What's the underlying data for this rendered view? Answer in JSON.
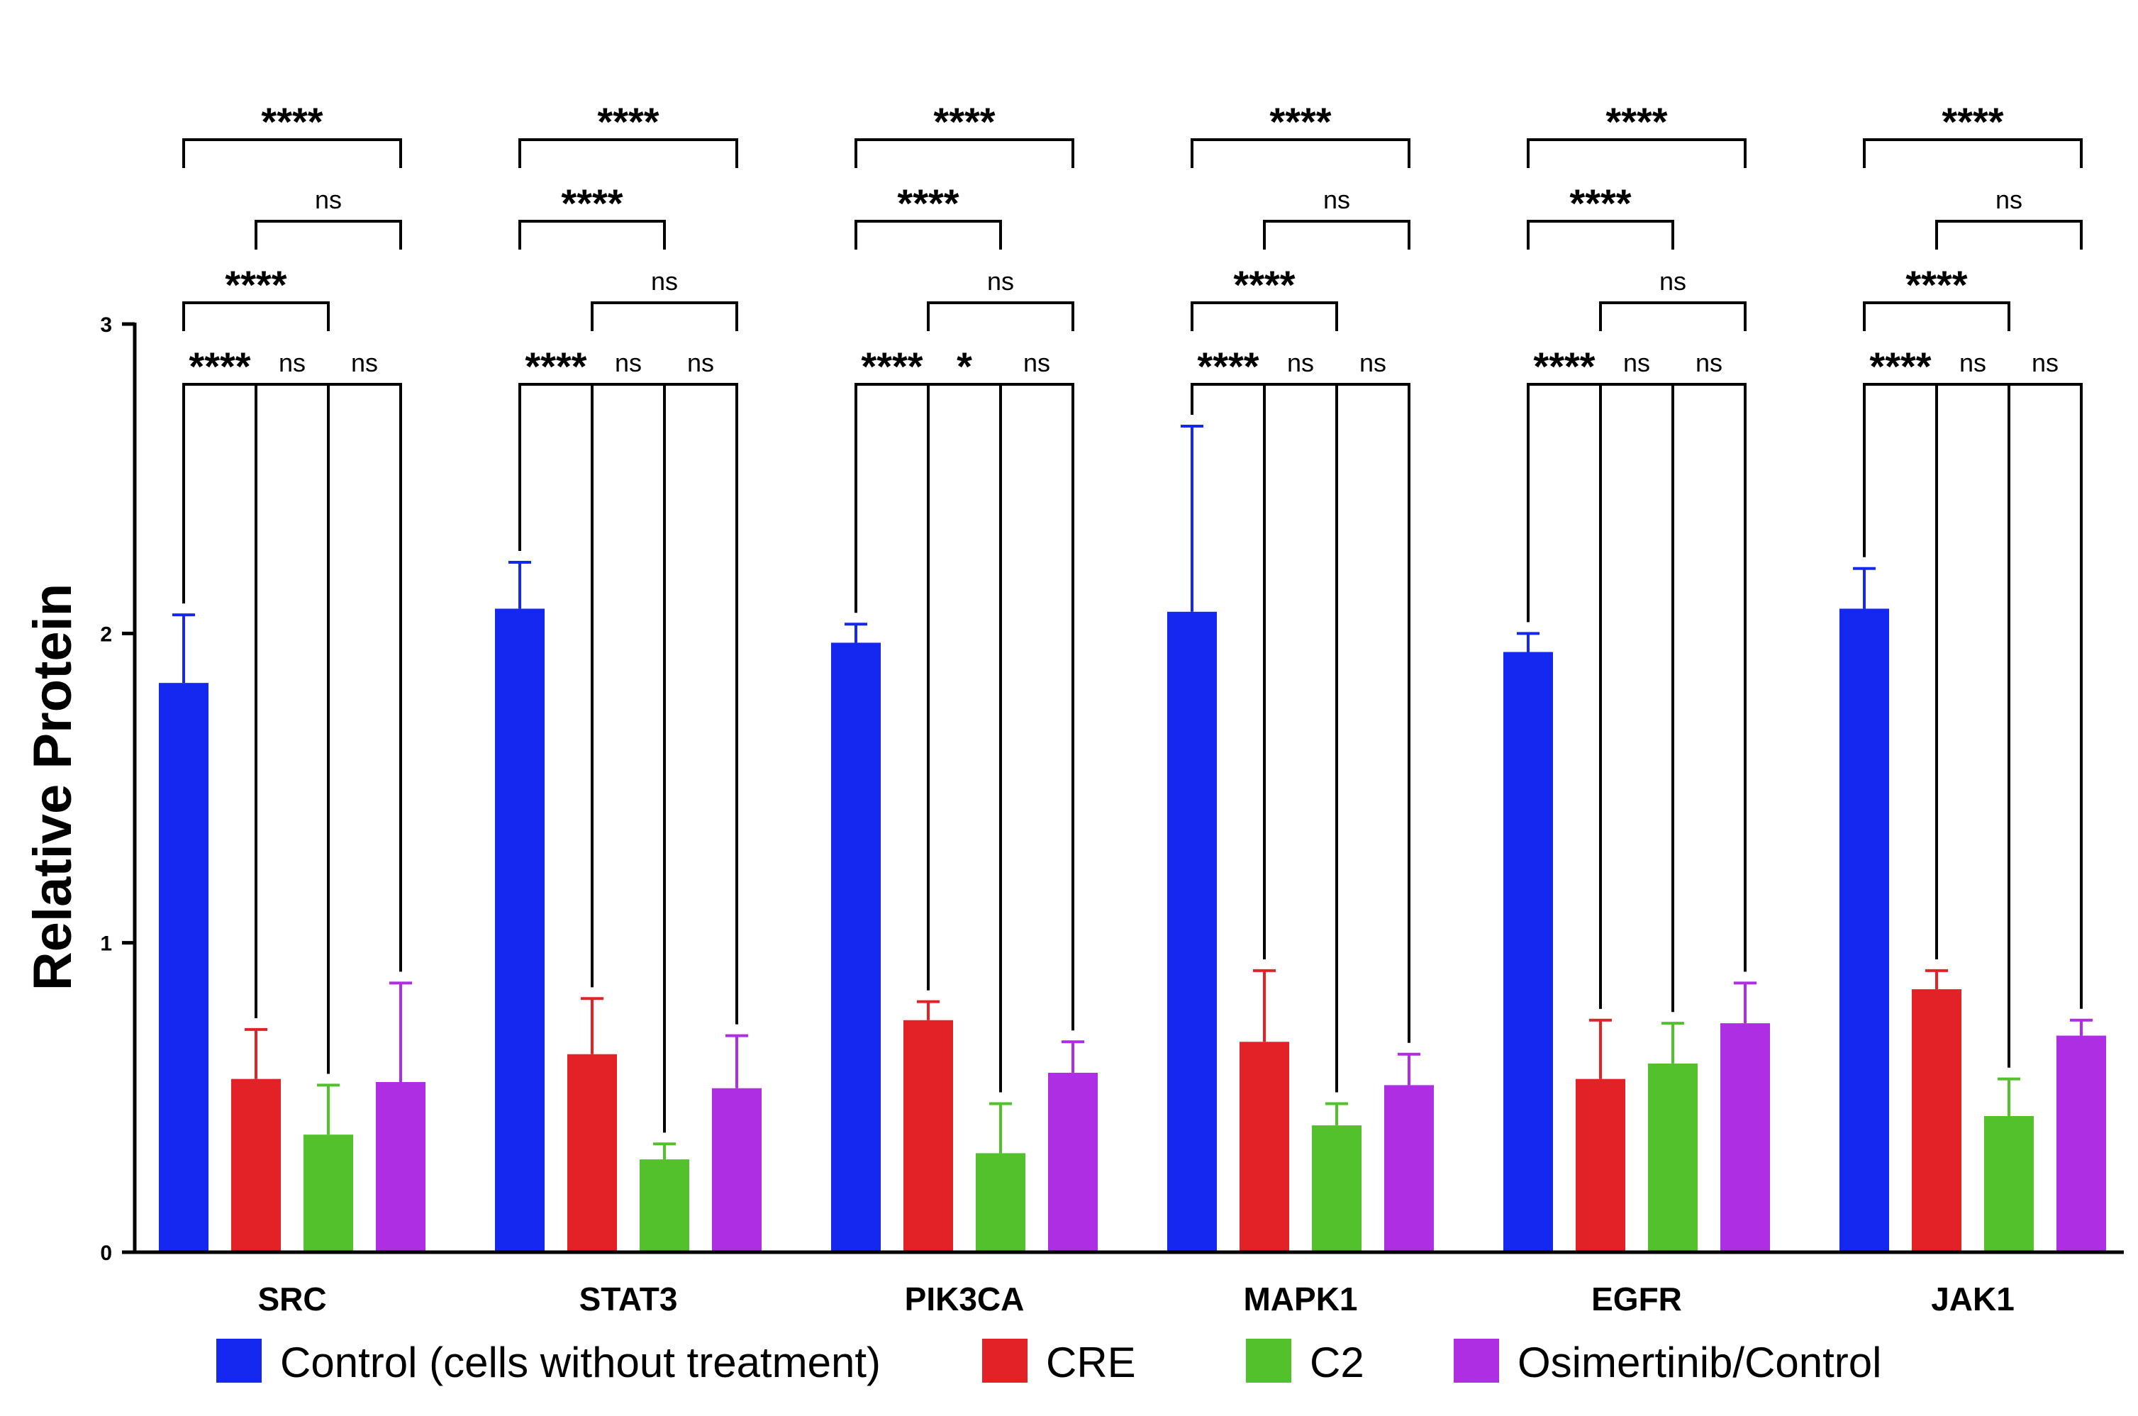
{
  "chart_data": {
    "type": "bar",
    "title": "",
    "xlabel": "",
    "ylabel": "Relative Protein",
    "ylim": [
      0,
      3
    ],
    "yticks": [
      0,
      1,
      2,
      3
    ],
    "categories": [
      "SRC",
      "STAT3",
      "PIK3CA",
      "MAPK1",
      "EGFR",
      "JAK1"
    ],
    "series": [
      {
        "name": "Control (cells without treatment)",
        "color": "#1428f0",
        "values": [
          1.84,
          2.08,
          1.97,
          2.07,
          1.94,
          2.08
        ],
        "errors": [
          0.22,
          0.15,
          0.06,
          0.6,
          0.06,
          0.13
        ]
      },
      {
        "name": "CRE",
        "color": "#e32228",
        "values": [
          0.56,
          0.64,
          0.75,
          0.68,
          0.56,
          0.85
        ],
        "errors": [
          0.16,
          0.18,
          0.06,
          0.23,
          0.19,
          0.06
        ]
      },
      {
        "name": "C2",
        "color": "#52c12b",
        "values": [
          0.38,
          0.3,
          0.32,
          0.41,
          0.61,
          0.44
        ],
        "errors": [
          0.16,
          0.05,
          0.16,
          0.07,
          0.13,
          0.12
        ]
      },
      {
        "name": "Osimertinib/Control",
        "color": "#ae2ee3",
        "values": [
          0.55,
          0.53,
          0.58,
          0.54,
          0.74,
          0.7
        ],
        "errors": [
          0.32,
          0.17,
          0.1,
          0.1,
          0.13,
          0.05
        ]
      }
    ],
    "legend": "bottom",
    "significance": [
      {
        "category": "SRC",
        "comparisons": [
          {
            "from": 0,
            "to": 1,
            "label": "****"
          },
          {
            "from": 2,
            "to": 3,
            "label": "ns"
          },
          {
            "from": 1,
            "to": 2,
            "label": "ns"
          },
          {
            "from": 0,
            "to": 2,
            "label": "****"
          },
          {
            "from": 1,
            "to": 3,
            "label": "ns"
          },
          {
            "from": 0,
            "to": 3,
            "label": "****"
          }
        ]
      },
      {
        "category": "STAT3",
        "comparisons": [
          {
            "from": 1,
            "to": 2,
            "label": "ns"
          },
          {
            "from": 2,
            "to": 3,
            "label": "ns"
          },
          {
            "from": 0,
            "to": 1,
            "label": "****"
          },
          {
            "from": 1,
            "to": 3,
            "label": "ns"
          },
          {
            "from": 0,
            "to": 2,
            "label": "****"
          },
          {
            "from": 0,
            "to": 3,
            "label": "****"
          }
        ]
      },
      {
        "category": "PIK3CA",
        "comparisons": [
          {
            "from": 0,
            "to": 1,
            "label": "****"
          },
          {
            "from": 2,
            "to": 3,
            "label": "ns"
          },
          {
            "from": 1,
            "to": 2,
            "label": "*"
          },
          {
            "from": 1,
            "to": 3,
            "label": "ns"
          },
          {
            "from": 0,
            "to": 2,
            "label": "****"
          },
          {
            "from": 0,
            "to": 3,
            "label": "****"
          }
        ]
      },
      {
        "category": "MAPK1",
        "comparisons": [
          {
            "from": 0,
            "to": 1,
            "label": "****"
          },
          {
            "from": 2,
            "to": 3,
            "label": "ns"
          },
          {
            "from": 1,
            "to": 2,
            "label": "ns"
          },
          {
            "from": 0,
            "to": 2,
            "label": "****"
          },
          {
            "from": 1,
            "to": 3,
            "label": "ns"
          },
          {
            "from": 0,
            "to": 3,
            "label": "****"
          }
        ]
      },
      {
        "category": "EGFR",
        "comparisons": [
          {
            "from": 1,
            "to": 2,
            "label": "ns"
          },
          {
            "from": 2,
            "to": 3,
            "label": "ns"
          },
          {
            "from": 0,
            "to": 1,
            "label": "****"
          },
          {
            "from": 1,
            "to": 3,
            "label": "ns"
          },
          {
            "from": 0,
            "to": 2,
            "label": "****"
          },
          {
            "from": 0,
            "to": 3,
            "label": "****"
          }
        ]
      },
      {
        "category": "JAK1",
        "comparisons": [
          {
            "from": 0,
            "to": 1,
            "label": "****"
          },
          {
            "from": 2,
            "to": 3,
            "label": "ns"
          },
          {
            "from": 1,
            "to": 2,
            "label": "ns"
          },
          {
            "from": 0,
            "to": 2,
            "label": "****"
          },
          {
            "from": 1,
            "to": 3,
            "label": "ns"
          },
          {
            "from": 0,
            "to": 3,
            "label": "****"
          }
        ]
      }
    ]
  }
}
